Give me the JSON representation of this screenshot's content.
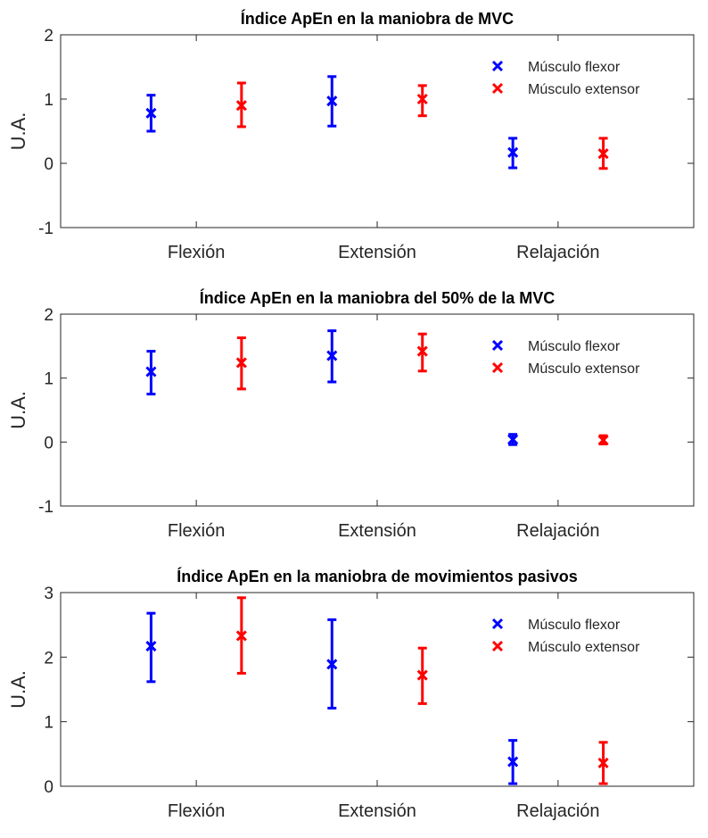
{
  "colors": {
    "flexor": "#0000ff",
    "extensor": "#ff0000",
    "axis": "#262626"
  },
  "chart_data": [
    {
      "type": "scatter",
      "title": "Índice ApEn en la maniobra de MVC",
      "ylabel": "U.A.",
      "xlabel": "",
      "categories": [
        "Flexión",
        "Extensión",
        "Relajación"
      ],
      "ylim": [
        -1,
        2
      ],
      "yticks": [
        "-1",
        "0",
        "1",
        "2"
      ],
      "yticks_values": [
        -1,
        0,
        1,
        2
      ],
      "legend": {
        "placement": "top-right",
        "entries": [
          "Músculo flexor",
          "Músculo extensor"
        ]
      },
      "series": [
        {
          "name": "Músculo flexor",
          "values": [
            0.78,
            0.97,
            0.17
          ],
          "upper": [
            1.06,
            1.35,
            0.39
          ],
          "lower": [
            0.5,
            0.58,
            -0.07
          ]
        },
        {
          "name": "Músculo extensor",
          "values": [
            0.9,
            1.0,
            0.15
          ],
          "upper": [
            1.25,
            1.21,
            0.39
          ],
          "lower": [
            0.57,
            0.74,
            -0.08
          ]
        }
      ]
    },
    {
      "type": "scatter",
      "title": "Índice ApEn en la maniobra del 50% de la MVC",
      "ylabel": "U.A.",
      "xlabel": "",
      "categories": [
        "Flexión",
        "Extensión",
        "Relajación"
      ],
      "ylim": [
        -1,
        2
      ],
      "yticks": [
        "-1",
        "0",
        "1",
        "2"
      ],
      "yticks_values": [
        -1,
        0,
        1,
        2
      ],
      "legend": {
        "placement": "top-right",
        "entries": [
          "Músculo flexor",
          "Músculo extensor"
        ]
      },
      "series": [
        {
          "name": "Músculo flexor",
          "values": [
            1.1,
            1.35,
            0.04
          ],
          "upper": [
            1.42,
            1.74,
            0.12
          ],
          "lower": [
            0.75,
            0.94,
            -0.04
          ]
        },
        {
          "name": "Músculo extensor",
          "values": [
            1.24,
            1.42,
            0.03
          ],
          "upper": [
            1.63,
            1.69,
            0.1
          ],
          "lower": [
            0.83,
            1.11,
            -0.03
          ]
        }
      ]
    },
    {
      "type": "scatter",
      "title": "Índice ApEn en la maniobra de movimientos pasivos",
      "ylabel": "U.A.",
      "xlabel": "",
      "categories": [
        "Flexión",
        "Extensión",
        "Relajación"
      ],
      "ylim": [
        0,
        3
      ],
      "yticks": [
        "0",
        "1",
        "2",
        "3"
      ],
      "yticks_values": [
        0,
        1,
        2,
        3
      ],
      "legend": {
        "placement": "top-right",
        "entries": [
          "Músculo flexor",
          "Músculo extensor"
        ]
      },
      "series": [
        {
          "name": "Músculo flexor",
          "values": [
            2.17,
            1.89,
            0.38
          ],
          "upper": [
            2.68,
            2.58,
            0.71
          ],
          "lower": [
            1.62,
            1.21,
            0.04
          ]
        },
        {
          "name": "Músculo extensor",
          "values": [
            2.33,
            1.72,
            0.36
          ],
          "upper": [
            2.92,
            2.14,
            0.68
          ],
          "lower": [
            1.75,
            1.28,
            0.04
          ]
        }
      ]
    }
  ]
}
